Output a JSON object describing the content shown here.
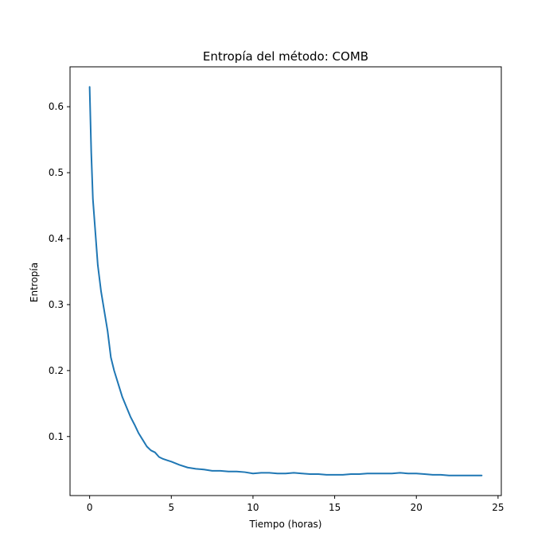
{
  "chart_data": {
    "type": "line",
    "title": "Entropía del método: COMB",
    "xlabel": "Tiempo (horas)",
    "ylabel": "Entropía",
    "xlim": [
      -1.2,
      25.2
    ],
    "ylim": [
      0.0105,
      0.6605
    ],
    "x_ticks": [
      0,
      5,
      10,
      15,
      20,
      25
    ],
    "x_tick_labels": [
      "0",
      "5",
      "10",
      "15",
      "20",
      "25"
    ],
    "y_ticks": [
      0.1,
      0.2,
      0.3,
      0.4,
      0.5,
      0.6
    ],
    "y_tick_labels": [
      "0.1",
      "0.2",
      "0.3",
      "0.4",
      "0.5",
      "0.6"
    ],
    "grid": false,
    "series": [
      {
        "color": "#1f77b4",
        "x": [
          0,
          0.1,
          0.2,
          0.35,
          0.5,
          0.7,
          0.9,
          1.1,
          1.3,
          1.5,
          1.75,
          2.0,
          2.25,
          2.5,
          2.75,
          3.0,
          3.25,
          3.5,
          3.75,
          4.0,
          4.25,
          4.5,
          4.75,
          5.0,
          5.5,
          6.0,
          6.5,
          7.0,
          7.5,
          8.0,
          8.5,
          9.0,
          9.5,
          10.0,
          10.5,
          11.0,
          11.5,
          12.0,
          12.5,
          13.0,
          13.5,
          14.0,
          14.5,
          15.0,
          15.5,
          16.0,
          16.5,
          17.0,
          17.5,
          18.0,
          18.5,
          19.0,
          19.5,
          20.0,
          20.5,
          21.0,
          21.5,
          22.0,
          22.5,
          23.0,
          23.5,
          24.0
        ],
        "y": [
          0.63,
          0.53,
          0.46,
          0.41,
          0.36,
          0.32,
          0.29,
          0.26,
          0.22,
          0.2,
          0.18,
          0.16,
          0.145,
          0.13,
          0.118,
          0.105,
          0.095,
          0.085,
          0.079,
          0.076,
          0.069,
          0.066,
          0.064,
          0.062,
          0.057,
          0.053,
          0.051,
          0.05,
          0.048,
          0.048,
          0.047,
          0.047,
          0.046,
          0.044,
          0.045,
          0.045,
          0.044,
          0.044,
          0.045,
          0.044,
          0.043,
          0.043,
          0.042,
          0.042,
          0.042,
          0.043,
          0.043,
          0.044,
          0.044,
          0.044,
          0.044,
          0.045,
          0.044,
          0.044,
          0.043,
          0.042,
          0.042,
          0.041,
          0.041,
          0.041,
          0.041,
          0.041
        ]
      }
    ]
  }
}
